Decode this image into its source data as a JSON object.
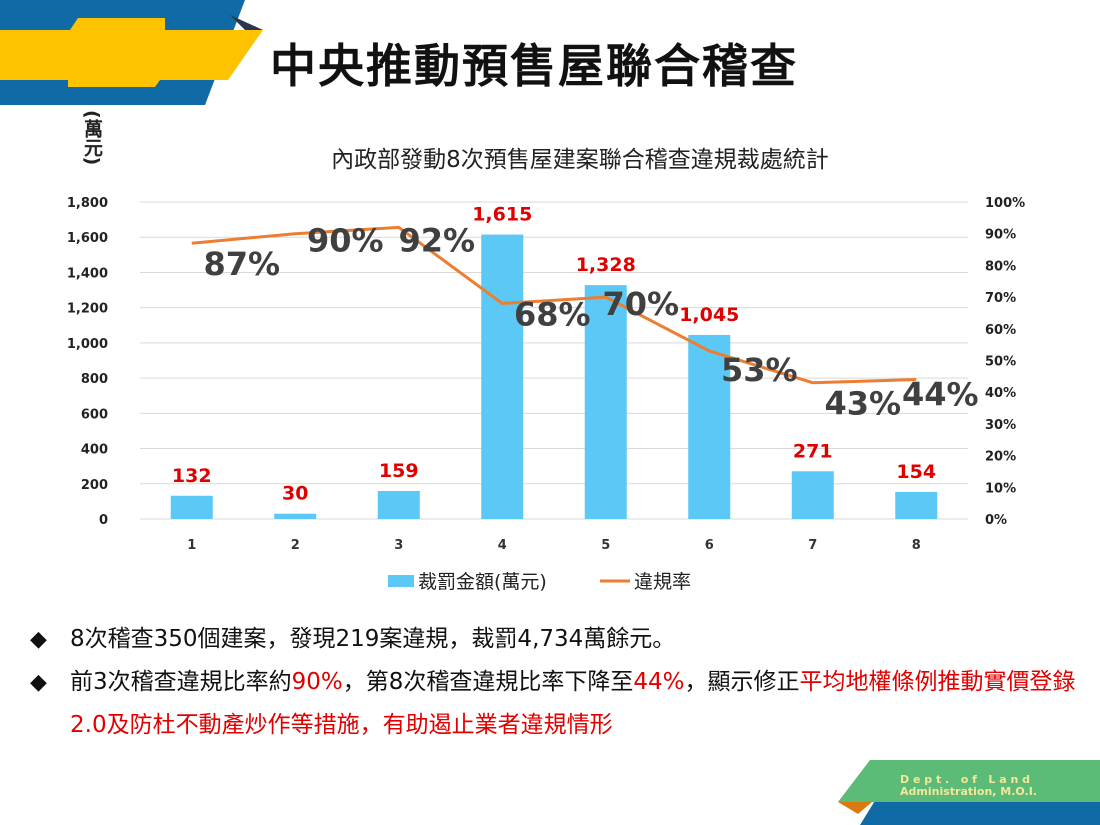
{
  "slide": {
    "title": "中央推動預售屋聯合稽查",
    "logo_text": "Dept. of Land Administration, M.O.I.",
    "logo_line1": "D e p t .   o f   L a n d",
    "logo_line2": "Administration, M.O.I.",
    "bullets": [
      {
        "parts": [
          {
            "text": "8次稽查350個建案，發現219案違規，裁罰4,734萬餘元。",
            "red": false
          }
        ]
      },
      {
        "parts": [
          {
            "text": "前3次稽查違規比率約",
            "red": false
          },
          {
            "text": "90%",
            "red": true
          },
          {
            "text": "，第8次稽查違規比率下降至",
            "red": false
          },
          {
            "text": "44%",
            "red": true
          },
          {
            "text": "，顯示修正",
            "red": false
          },
          {
            "text": "平均地權條例推動實價登錄2.0及防杜不動產炒作等措施，有助遏止業者違規情形",
            "red": true
          }
        ]
      }
    ]
  },
  "colors": {
    "bar": "#5bc8f5",
    "line": "#ed7d31",
    "label_red": "#e00000",
    "pct_label": "#404040",
    "blue": "#0f6aa6",
    "yellow": "#fdc300",
    "green": "#5dbb78"
  },
  "chart_data": {
    "type": "bar",
    "title": "內政部發動8次預售屋建案聯合稽查違規裁處統計",
    "ylabel": "(萬元)",
    "categories": [
      "1",
      "2",
      "3",
      "4",
      "5",
      "6",
      "7",
      "8"
    ],
    "ylim": [
      0,
      1800
    ],
    "yticks": [
      "0",
      "200",
      "400",
      "600",
      "800",
      "1,000",
      "1,200",
      "1,400",
      "1,600",
      "1,800"
    ],
    "y2lim": [
      0,
      100
    ],
    "y2ticks": [
      "0%",
      "10%",
      "20%",
      "30%",
      "40%",
      "50%",
      "60%",
      "70%",
      "80%",
      "90%",
      "100%"
    ],
    "series": [
      {
        "name": "裁罰金額(萬元)",
        "type": "bar",
        "values": [
          132,
          30,
          159,
          1615,
          1328,
          1045,
          271,
          154
        ],
        "labels": [
          "132",
          "30",
          "159",
          "1,615",
          "1,328",
          "1,045",
          "271",
          "154"
        ]
      },
      {
        "name": "違規率",
        "type": "line",
        "axis": "right",
        "values": [
          87,
          90,
          92,
          68,
          70,
          53,
          43,
          44
        ],
        "labels": [
          "87%",
          "90%",
          "92%",
          "68%",
          "70%",
          "53%",
          "43%",
          "44%"
        ]
      }
    ],
    "legend": "bottom",
    "grid": true
  }
}
